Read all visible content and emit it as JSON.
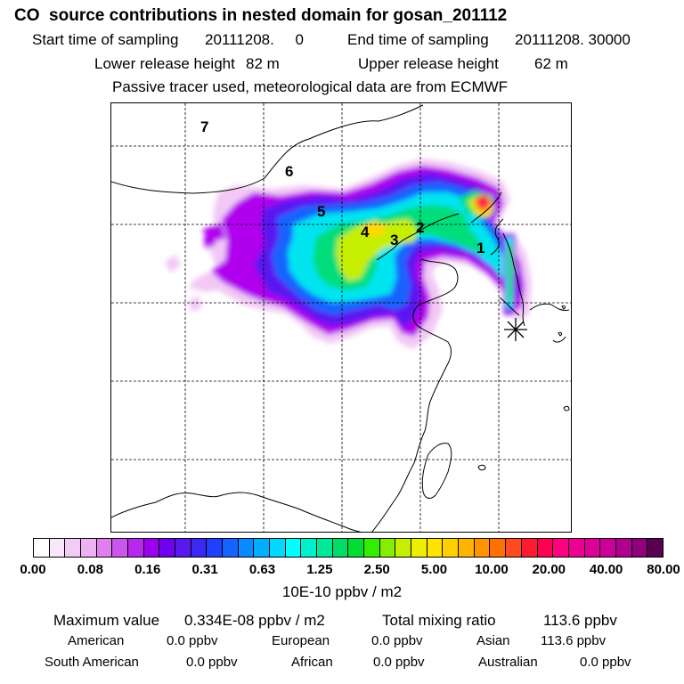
{
  "header": {
    "title": "CO  source contributions in nested domain for gosan_201112",
    "sampling_start_label": "Start time of sampling",
    "sampling_start_value": "20111208.     0",
    "sampling_end_label": "End time of sampling",
    "sampling_end_value": "20111208. 30000",
    "lower_height_label": "Lower release height",
    "lower_height_value": "82 m",
    "upper_height_label": "Upper release height",
    "upper_height_value": "62 m",
    "note": "Passive tracer used, meteorological data are from ECMWF"
  },
  "map": {
    "region_labels": [
      "1",
      "2",
      "3",
      "4",
      "5",
      "6",
      "7"
    ],
    "receptor_marker": "asterisk-icon",
    "plume_levels": [
      {
        "level": 0.04,
        "color": "#f2c8f5"
      },
      {
        "level": 0.12,
        "color": "#b000ee"
      },
      {
        "level": 0.2,
        "color": "#5a18f0"
      },
      {
        "level": 0.4,
        "color": "#1464ff"
      },
      {
        "level": 0.8,
        "color": "#00e4f0"
      },
      {
        "level": 1.8,
        "color": "#00dd7a"
      },
      {
        "level": 3.5,
        "color": "#c6ee00"
      },
      {
        "level": 7,
        "color": "#ffd800"
      },
      {
        "level": 14,
        "color": "#ff7700"
      },
      {
        "level": 25,
        "color": "#ff0050"
      }
    ]
  },
  "colorbar": {
    "tick_labels": [
      "0.00",
      "0.08",
      "0.16",
      "0.31",
      "0.63",
      "1.25",
      "2.50",
      "5.00",
      "10.00",
      "20.00",
      "40.00",
      "80.00"
    ],
    "unit": "10E-10 ppbv / m2",
    "colors": [
      "#ffffff",
      "#f8e6fa",
      "#f2ccf6",
      "#ecb2f2",
      "#e27fee",
      "#cc55ee",
      "#b628ee",
      "#9a00ee",
      "#7000f0",
      "#5a18f0",
      "#3c28f0",
      "#2040ff",
      "#1464ff",
      "#0a8aff",
      "#00b0ff",
      "#00d8ff",
      "#00ffff",
      "#00f0cc",
      "#00e89a",
      "#00dd66",
      "#00dd33",
      "#33ee00",
      "#88ee00",
      "#c6ee00",
      "#eeee00",
      "#ffe400",
      "#ffd000",
      "#ffb400",
      "#ff9400",
      "#ff7000",
      "#ff4a20",
      "#ff1a30",
      "#ff0050",
      "#ff0080",
      "#ee0090",
      "#dd0098",
      "#cc0099",
      "#b00090",
      "#900078",
      "#5a0050"
    ]
  },
  "stats": {
    "max_label": "Maximum value",
    "max_value": "0.334E-08 ppbv / m2",
    "total_label": "Total mixing ratio",
    "total_value": "113.6 ppbv",
    "american_label": "American",
    "american_value": "0.0 ppbv",
    "european_label": "European",
    "european_value": "0.0 ppbv",
    "asian_label": "Asian",
    "asian_value": "113.6 ppbv",
    "south_american_label": "South American",
    "south_american_value": "0.0 ppbv",
    "african_label": "African",
    "african_value": "0.0 ppbv",
    "australian_label": "Australian",
    "australian_value": "0.0 ppbv"
  }
}
